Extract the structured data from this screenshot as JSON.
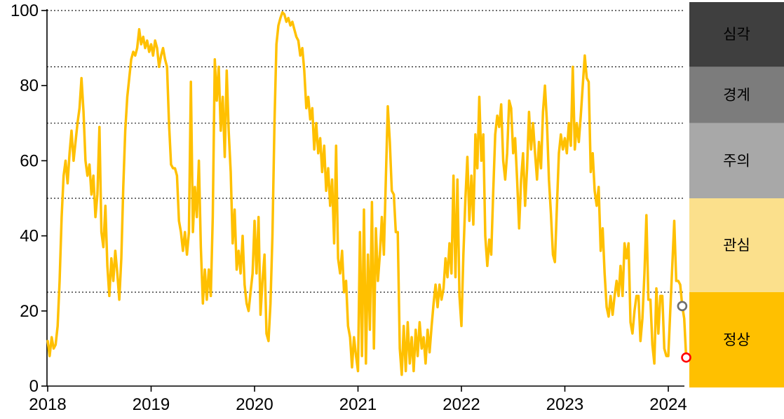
{
  "chart_data": {
    "type": "line",
    "title": "",
    "x_axis": {
      "ticks": [
        "2018",
        "2019",
        "2020",
        "2021",
        "2022",
        "2023",
        "2024"
      ],
      "range": [
        2018,
        2024.25
      ]
    },
    "y_axis": {
      "ticks": [
        "0",
        "20",
        "40",
        "60",
        "80",
        "100"
      ],
      "tick_values": [
        0,
        20,
        40,
        60,
        80,
        100
      ],
      "range": [
        0,
        100
      ],
      "gridlines": [
        25,
        50,
        70,
        85,
        100
      ],
      "grid_style": "dotted"
    },
    "series": [
      {
        "color": "#FFC000",
        "start_year": 2018,
        "points_per_year": 52,
        "values": [
          12,
          8,
          13,
          10,
          11,
          16,
          28,
          45,
          56,
          60,
          54,
          62,
          68,
          60,
          65,
          70,
          74,
          82,
          73,
          60,
          56,
          59,
          51,
          56,
          45,
          51,
          69,
          41,
          37,
          48,
          32,
          24,
          34,
          28,
          36,
          30,
          23,
          34,
          53,
          68,
          77,
          82,
          87,
          89,
          88,
          90,
          95,
          91,
          93,
          90,
          92,
          89,
          91,
          88,
          92,
          90,
          85,
          88,
          90,
          87,
          85,
          70,
          59,
          58,
          58,
          56,
          44,
          41,
          36,
          41,
          35,
          41,
          81,
          41,
          53,
          45,
          60,
          37,
          22,
          31,
          23,
          31,
          24,
          45,
          87,
          76,
          85,
          68,
          77,
          61,
          84,
          68,
          57,
          38,
          47,
          31,
          36,
          30,
          40,
          27,
          22,
          20,
          25,
          30,
          44,
          30,
          45,
          19,
          28,
          35,
          14,
          12,
          22,
          40,
          70,
          91,
          96,
          98,
          99.5,
          99,
          97,
          98,
          96,
          97,
          95,
          93,
          92,
          88,
          90,
          84,
          74,
          77,
          71,
          74,
          63,
          70,
          62,
          66,
          57,
          64,
          52,
          58,
          48,
          55,
          38,
          64,
          34,
          30,
          36,
          25,
          28,
          16,
          13,
          5,
          13,
          8,
          4,
          41,
          8,
          47,
          6,
          35,
          15,
          49,
          10,
          42,
          28,
          35,
          45,
          35,
          55,
          74.5,
          65,
          52,
          51,
          41,
          41,
          10,
          3,
          16,
          4,
          17,
          6,
          13,
          4,
          15,
          8,
          17,
          10,
          13,
          6,
          15,
          9,
          16,
          22,
          27,
          21,
          27,
          23,
          26,
          34,
          29,
          38,
          30,
          56,
          29,
          55,
          24,
          16,
          35,
          50,
          61,
          44,
          56,
          43,
          67,
          58,
          77,
          60,
          67,
          40,
          32,
          39,
          35,
          52,
          67,
          72,
          69,
          75,
          60,
          55,
          62,
          76,
          74,
          62,
          66,
          55,
          42,
          55,
          62,
          48,
          58,
          73,
          63,
          70,
          62,
          55,
          65,
          58,
          73,
          80,
          70,
          55,
          46,
          35,
          33,
          48,
          62,
          67,
          63,
          66,
          62,
          70,
          64,
          85,
          63,
          70,
          65,
          72,
          80,
          88,
          82,
          81,
          57,
          62,
          52,
          48,
          53,
          36,
          42,
          30,
          21,
          18.5,
          24,
          19,
          24,
          28,
          24,
          32,
          24,
          38,
          34,
          38,
          17,
          14,
          20,
          24,
          24,
          12,
          18,
          30,
          45.5,
          23,
          23,
          11,
          6,
          26,
          14,
          24,
          24,
          10,
          8,
          8,
          20,
          32,
          44,
          28,
          28,
          27,
          21.3,
          18,
          7.6
        ]
      }
    ],
    "markers": [
      {
        "name": "previous-point",
        "index": 319,
        "value": 21.3,
        "stroke": "#6E6E6E",
        "fill": "#FFFFFF"
      },
      {
        "name": "latest-point",
        "index": 321,
        "value": 7.6,
        "stroke": "#FF0000",
        "fill": "#FFFFFF"
      }
    ],
    "bands": [
      {
        "label": "심각",
        "from": 85,
        "to": 100,
        "color": "#3F3F3F",
        "text_color": "#FFFFFF"
      },
      {
        "label": "경계",
        "from": 70,
        "to": 85,
        "color": "#7C7C7C",
        "text_color": "#FFFFFF"
      },
      {
        "label": "주의",
        "from": 50,
        "to": 70,
        "color": "#A8A8A8",
        "text_color": "#000000"
      },
      {
        "label": "관심",
        "from": 25,
        "to": 50,
        "color": "#FBE08C",
        "text_color": "#000000"
      },
      {
        "label": "정상",
        "from": 0,
        "to": 25,
        "color": "#FFC000",
        "text_color": "#000000"
      }
    ],
    "line_width": 3.5,
    "axis_color": "#000000",
    "grid_color": "#1A1A1A",
    "background": "#FFFFFF"
  }
}
